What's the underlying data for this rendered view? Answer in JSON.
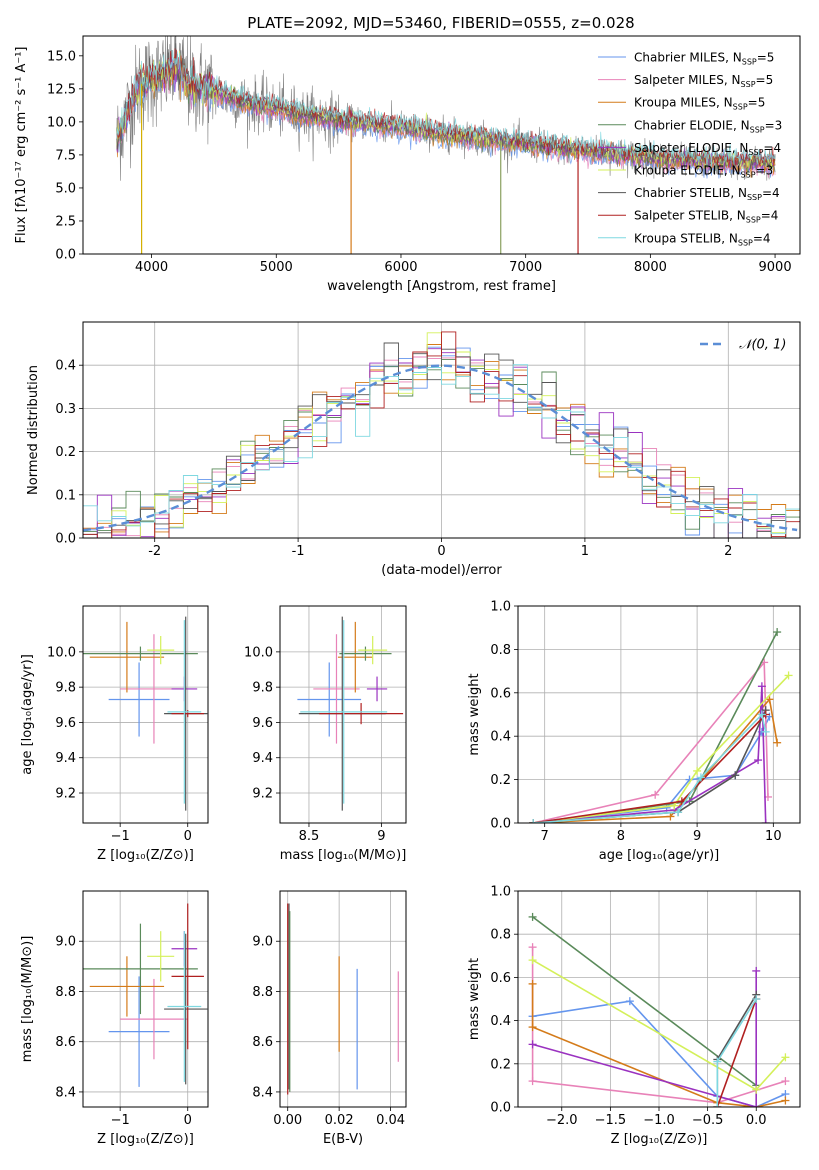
{
  "figure": {
    "title": "PLATE=2092, MJD=53460, FIBERID=0555, z=0.028"
  },
  "series_styles": [
    {
      "name": "Chabrier MILES, N",
      "sub": "SSP",
      "tail": "=5",
      "color": "#6495ed"
    },
    {
      "name": "Salpeter MILES, N",
      "sub": "SSP",
      "tail": "=5",
      "color": "#e882b8"
    },
    {
      "name": "Kroupa MILES, N",
      "sub": "SSP",
      "tail": "=5",
      "color": "#d47b1a"
    },
    {
      "name": "Chabrier ELODIE, N",
      "sub": "SSP",
      "tail": "=3",
      "color": "#5a8a5a"
    },
    {
      "name": "Salpeter ELODIE, N",
      "sub": "SSP",
      "tail": "=4",
      "color": "#9a32c0"
    },
    {
      "name": "Kroupa ELODIE, N",
      "sub": "SSP",
      "tail": "=3",
      "color": "#d4f05a"
    },
    {
      "name": "Chabrier STELIB, N",
      "sub": "SSP",
      "tail": "=4",
      "color": "#555555"
    },
    {
      "name": "Salpeter STELIB, N",
      "sub": "SSP",
      "tail": "=4",
      "color": "#b02020"
    },
    {
      "name": "Kroupa STELIB, N",
      "sub": "SSP",
      "tail": "=4",
      "color": "#7fd8e0"
    }
  ],
  "chart_data": [
    {
      "id": "spectrum",
      "type": "line",
      "xlabel": "wavelength [Angstrom, rest frame]",
      "ylabel": "Flux [fλ10⁻¹⁷ erg cm⁻² s⁻¹ A⁻¹]",
      "xlim": [
        3450,
        9200
      ],
      "ylim": [
        0,
        16.5
      ],
      "xticks": [
        4000,
        5000,
        6000,
        7000,
        8000,
        9000
      ],
      "yticks": [
        0.0,
        2.5,
        5.0,
        7.5,
        10.0,
        12.5,
        15.0
      ],
      "continuum_x": [
        3720,
        3800,
        3900,
        4000,
        4100,
        4200,
        4300,
        4500,
        4700,
        5000,
        5300,
        5600,
        6000,
        6400,
        6800,
        7200,
        7600,
        8000,
        8400,
        8800,
        9000
      ],
      "continuum_y": [
        8.5,
        10.5,
        12.8,
        13.2,
        13.6,
        14.2,
        12.8,
        12.3,
        11.6,
        11.0,
        10.4,
        10.0,
        9.6,
        9.0,
        8.6,
        8.1,
        7.7,
        7.3,
        7.0,
        6.9,
        6.9
      ],
      "legend_loc": "upper right",
      "grid": false
    },
    {
      "id": "residuals",
      "type": "histogram",
      "xlabel": "(data-model)/error",
      "ylabel": "Normed distribution",
      "xlim": [
        -2.5,
        2.5
      ],
      "ylim": [
        0,
        0.5
      ],
      "xticks": [
        -2,
        -1,
        0,
        1,
        2
      ],
      "yticks": [
        0.0,
        0.1,
        0.2,
        0.3,
        0.4
      ],
      "bin_width": 0.1,
      "reference_label": "𝒩(0, 1)",
      "reference_color": "#5b8ed6",
      "grid": true
    },
    {
      "id": "age-Z",
      "type": "errorbar",
      "xlabel": "Z [log₁₀(Z/Z⊙)]",
      "ylabel": "age  [log₁₀(age/yr)]",
      "xlim": [
        -1.55,
        0.3
      ],
      "ylim": [
        9.03,
        10.26
      ],
      "xticks": [
        -1,
        0
      ],
      "xtick_labels": [
        "−1",
        "0"
      ],
      "yticks": [
        9.2,
        9.4,
        9.6,
        9.8,
        10.0
      ],
      "points": [
        {
          "x": -0.72,
          "xerr": 0.45,
          "y": 9.73,
          "yerr": 0.21,
          "c": 0
        },
        {
          "x": -0.5,
          "xerr": 0.5,
          "y": 9.79,
          "yerr": 0.31,
          "c": 1
        },
        {
          "x": -0.9,
          "xerr": 0.55,
          "y": 9.97,
          "yerr": 0.2,
          "c": 2
        },
        {
          "x": -0.7,
          "xerr": 0.85,
          "y": 9.99,
          "yerr": 0.04,
          "c": 3
        },
        {
          "x": -0.05,
          "xerr": 0.19,
          "y": 9.79,
          "yerr": 0.07,
          "c": 4
        },
        {
          "x": -0.4,
          "xerr": 0.2,
          "y": 10.01,
          "yerr": 0.08,
          "c": 5
        },
        {
          "x": -0.03,
          "xerr": 0.32,
          "y": 9.65,
          "yerr": 0.55,
          "c": 6
        },
        {
          "x": 0.0,
          "xerr": 0.24,
          "y": 9.65,
          "yerr": 0.02,
          "c": 7
        },
        {
          "x": -0.05,
          "xerr": 0.25,
          "y": 9.66,
          "yerr": 0.52,
          "c": 8
        }
      ]
    },
    {
      "id": "age-mass",
      "type": "errorbar",
      "xlabel": "mass [log₁₀(M/M⊙)]",
      "ylabel": "",
      "xlim": [
        8.3,
        9.17
      ],
      "ylim": [
        9.03,
        10.26
      ],
      "xticks": [
        8.5,
        9.0
      ],
      "yticks": [
        9.2,
        9.4,
        9.6,
        9.8,
        10.0
      ],
      "points": [
        {
          "x": 8.64,
          "xerr": 0.22,
          "y": 9.73,
          "yerr": 0.21,
          "c": 0
        },
        {
          "x": 8.69,
          "xerr": 0.16,
          "y": 9.79,
          "yerr": 0.31,
          "c": 1
        },
        {
          "x": 8.82,
          "xerr": 0.12,
          "y": 9.97,
          "yerr": 0.2,
          "c": 2
        },
        {
          "x": 8.89,
          "xerr": 0.18,
          "y": 9.99,
          "yerr": 0.04,
          "c": 3
        },
        {
          "x": 8.97,
          "xerr": 0.07,
          "y": 9.79,
          "yerr": 0.07,
          "c": 4
        },
        {
          "x": 8.94,
          "xerr": 0.1,
          "y": 10.01,
          "yerr": 0.08,
          "c": 5
        },
        {
          "x": 8.73,
          "xerr": 0.3,
          "y": 9.65,
          "yerr": 0.55,
          "c": 6
        },
        {
          "x": 8.86,
          "xerr": 0.29,
          "y": 9.65,
          "yerr": 0.06,
          "c": 7
        },
        {
          "x": 8.74,
          "xerr": 0.3,
          "y": 9.66,
          "yerr": 0.52,
          "c": 8
        }
      ]
    },
    {
      "id": "weight-age",
      "type": "line",
      "xlabel": "age  [log₁₀(age/yr)]",
      "ylabel": "mass weight",
      "xlim": [
        6.65,
        10.35
      ],
      "ylim": [
        0,
        1.0
      ],
      "xticks": [
        7,
        8,
        9,
        10
      ],
      "yticks": [
        0.0,
        0.2,
        0.4,
        0.6,
        0.8,
        1.0
      ],
      "series": [
        {
          "c": 0,
          "x": [
            6.85,
            8.6,
            8.9,
            9.5,
            9.85,
            9.95
          ],
          "y": [
            0.0,
            0.07,
            0.2,
            0.22,
            0.42,
            0.49
          ]
        },
        {
          "c": 1,
          "x": [
            6.85,
            8.45,
            9.88,
            9.93
          ],
          "y": [
            0.0,
            0.13,
            0.74,
            0.12
          ]
        },
        {
          "c": 2,
          "x": [
            6.85,
            8.65,
            9.95,
            10.05
          ],
          "y": [
            0.0,
            0.03,
            0.57,
            0.37
          ]
        },
        {
          "c": 3,
          "x": [
            6.85,
            8.9,
            10.05
          ],
          "y": [
            0.0,
            0.1,
            0.88
          ]
        },
        {
          "c": 4,
          "x": [
            6.85,
            8.7,
            9.8,
            9.85,
            9.9
          ],
          "y": [
            0.0,
            0.06,
            0.29,
            0.63,
            0.0
          ]
        },
        {
          "c": 5,
          "x": [
            6.85,
            8.7,
            9.0,
            10.2
          ],
          "y": [
            0.0,
            0.08,
            0.24,
            0.68
          ]
        },
        {
          "c": 6,
          "x": [
            6.85,
            8.75,
            9.5,
            9.9
          ],
          "y": [
            0.0,
            0.05,
            0.22,
            0.52
          ]
        },
        {
          "c": 7,
          "x": [
            6.85,
            8.8,
            9.9
          ],
          "y": [
            0.0,
            0.1,
            0.5
          ]
        },
        {
          "c": 8,
          "x": [
            6.85,
            8.75,
            9.05,
            9.85,
            9.9
          ],
          "y": [
            0.0,
            0.05,
            0.21,
            0.5,
            0.42
          ]
        }
      ]
    },
    {
      "id": "mass-Z",
      "type": "errorbar",
      "xlabel": "Z [log₁₀(Z/Z⊙)]",
      "ylabel": "mass [log₁₀(M/M⊙)]",
      "xlim": [
        -1.55,
        0.3
      ],
      "ylim": [
        8.34,
        9.2
      ],
      "xticks": [
        -1,
        0
      ],
      "xtick_labels": [
        "−1",
        "0"
      ],
      "yticks": [
        8.4,
        8.6,
        8.8,
        9.0
      ],
      "points": [
        {
          "x": -0.72,
          "xerr": 0.45,
          "y": 8.64,
          "yerr": 0.22,
          "c": 0
        },
        {
          "x": -0.5,
          "xerr": 0.5,
          "y": 8.69,
          "yerr": 0.16,
          "c": 1
        },
        {
          "x": -0.9,
          "xerr": 0.55,
          "y": 8.82,
          "yerr": 0.12,
          "c": 2
        },
        {
          "x": -0.7,
          "xerr": 0.85,
          "y": 8.89,
          "yerr": 0.18,
          "c": 3
        },
        {
          "x": -0.05,
          "xerr": 0.19,
          "y": 8.97,
          "yerr": 0.07,
          "c": 4
        },
        {
          "x": -0.4,
          "xerr": 0.2,
          "y": 8.94,
          "yerr": 0.1,
          "c": 5
        },
        {
          "x": -0.03,
          "xerr": 0.32,
          "y": 8.73,
          "yerr": 0.3,
          "c": 6
        },
        {
          "x": 0.0,
          "xerr": 0.24,
          "y": 8.86,
          "yerr": 0.29,
          "c": 7
        },
        {
          "x": -0.05,
          "xerr": 0.25,
          "y": 8.74,
          "yerr": 0.3,
          "c": 8
        }
      ]
    },
    {
      "id": "mass-ebv",
      "type": "errorbar",
      "xlabel": "E(B-V)",
      "ylabel": "",
      "xlim": [
        -0.003,
        0.046
      ],
      "ylim": [
        8.34,
        9.2
      ],
      "xticks": [
        0.0,
        0.02,
        0.04
      ],
      "xtick_labels": [
        "0.00",
        "0.02",
        "0.04"
      ],
      "yticks": [
        8.4,
        8.6,
        8.8,
        9.0
      ],
      "points": [
        {
          "x": 0.027,
          "xerr": 0,
          "y": 8.65,
          "yerr": 0.24,
          "c": 0
        },
        {
          "x": 0.043,
          "xerr": 0,
          "y": 8.7,
          "yerr": 0.18,
          "c": 1
        },
        {
          "x": 0.02,
          "xerr": 0,
          "y": 8.75,
          "yerr": 0.19,
          "c": 2
        },
        {
          "x": 0.0005,
          "xerr": 0,
          "y": 8.78,
          "yerr": 0.37,
          "c": 6
        },
        {
          "x": 0.0,
          "xerr": 0,
          "y": 8.77,
          "yerr": 0.38,
          "c": 7
        },
        {
          "x": 0.0008,
          "xerr": 0,
          "y": 8.76,
          "yerr": 0.36,
          "c": 3
        }
      ]
    },
    {
      "id": "weight-Z",
      "type": "line",
      "xlabel": "Z [log₁₀(Z/Z⊙)]",
      "ylabel": "mass weight",
      "xlim": [
        -2.45,
        0.45
      ],
      "ylim": [
        0,
        1.0
      ],
      "xticks": [
        -2.0,
        -1.5,
        -1.0,
        -0.5,
        0.0
      ],
      "xtick_labels": [
        "−2.0",
        "−1.5",
        "−1.0",
        "−0.5",
        "0.0"
      ],
      "yticks": [
        0.0,
        0.2,
        0.4,
        0.6,
        0.8,
        1.0
      ],
      "series": [
        {
          "c": 0,
          "x": [
            -2.3,
            -1.3,
            -0.4,
            0.0,
            0.3
          ],
          "y": [
            0.42,
            0.49,
            0.05,
            0.0,
            0.06
          ]
        },
        {
          "c": 1,
          "x": [
            -2.3,
            -2.3,
            -0.4,
            0.3
          ],
          "y": [
            0.74,
            0.12,
            0.02,
            0.12
          ]
        },
        {
          "c": 2,
          "x": [
            -2.3,
            -2.3,
            -0.4,
            0.0,
            0.3
          ],
          "y": [
            0.57,
            0.37,
            0.02,
            0.0,
            0.03
          ]
        },
        {
          "c": 3,
          "x": [
            -2.3,
            0.0
          ],
          "y": [
            0.88,
            0.1
          ]
        },
        {
          "c": 4,
          "x": [
            -2.3,
            0.0,
            0.0,
            0.0
          ],
          "y": [
            0.29,
            0.0,
            0.63,
            0.0
          ]
        },
        {
          "c": 5,
          "x": [
            -2.3,
            0.0,
            0.3
          ],
          "y": [
            0.68,
            0.08,
            0.23
          ]
        },
        {
          "c": 6,
          "x": [
            -0.4,
            -0.4,
            0.0
          ],
          "y": [
            0.0,
            0.22,
            0.52
          ]
        },
        {
          "c": 7,
          "x": [
            -0.4,
            0.0
          ],
          "y": [
            0.0,
            0.5
          ]
        },
        {
          "c": 8,
          "x": [
            -0.4,
            -0.4,
            0.0
          ],
          "y": [
            0.0,
            0.21,
            0.5
          ]
        }
      ]
    }
  ]
}
